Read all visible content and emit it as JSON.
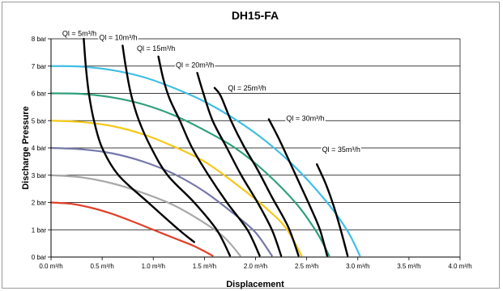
{
  "chart_data": {
    "type": "line",
    "title": "DH15-FA",
    "xlabel": "Displacement",
    "ylabel": "Discharge Pressure",
    "xlim": [
      0,
      4
    ],
    "ylim": [
      0,
      8
    ],
    "x_ticks": [
      {
        "v": 0.0,
        "label": "0.0 m³/h"
      },
      {
        "v": 0.5,
        "label": "0.5 m³/h"
      },
      {
        "v": 1.0,
        "label": "1.0 m³/h"
      },
      {
        "v": 1.5,
        "label": "1.5 m³/h"
      },
      {
        "v": 2.0,
        "label": "2.0 m³/h"
      },
      {
        "v": 2.5,
        "label": "2.5 m³/h"
      },
      {
        "v": 3.0,
        "label": "3.0 m³/h"
      },
      {
        "v": 3.5,
        "label": "3.5 m³/h"
      },
      {
        "v": 4.0,
        "label": "4.0 m³/h"
      }
    ],
    "y_ticks": [
      {
        "v": 0,
        "label": "0 bar"
      },
      {
        "v": 1,
        "label": "1 bar"
      },
      {
        "v": 2,
        "label": "2 bar"
      },
      {
        "v": 3,
        "label": "3 bar"
      },
      {
        "v": 4,
        "label": "4 bar"
      },
      {
        "v": 5,
        "label": "5 bar"
      },
      {
        "v": 6,
        "label": "6 bar"
      },
      {
        "v": 7,
        "label": "7 bar"
      },
      {
        "v": 8,
        "label": "8 bar"
      }
    ],
    "grid": "horizontal",
    "pressure_curves": [
      {
        "color": "#e0402a",
        "points": [
          [
            0.0,
            2.0
          ],
          [
            0.2,
            1.95
          ],
          [
            0.4,
            1.8
          ],
          [
            0.6,
            1.58
          ],
          [
            0.8,
            1.3
          ],
          [
            1.0,
            1.0
          ],
          [
            1.2,
            0.7
          ],
          [
            1.4,
            0.4
          ],
          [
            1.58,
            0.05
          ]
        ]
      },
      {
        "color": "#a8a8a8",
        "points": [
          [
            0.0,
            3.0
          ],
          [
            0.3,
            2.92
          ],
          [
            0.6,
            2.7
          ],
          [
            0.9,
            2.35
          ],
          [
            1.2,
            1.9
          ],
          [
            1.5,
            1.25
          ],
          [
            1.7,
            0.7
          ],
          [
            1.85,
            0.05
          ]
        ]
      },
      {
        "color": "#7478a8",
        "points": [
          [
            0.0,
            4.0
          ],
          [
            0.3,
            3.95
          ],
          [
            0.6,
            3.8
          ],
          [
            0.9,
            3.5
          ],
          [
            1.2,
            3.05
          ],
          [
            1.5,
            2.4
          ],
          [
            1.8,
            1.55
          ],
          [
            2.0,
            0.9
          ],
          [
            2.16,
            0.05
          ]
        ]
      },
      {
        "color": "#f5c817",
        "points": [
          [
            0.0,
            5.0
          ],
          [
            0.3,
            4.95
          ],
          [
            0.6,
            4.8
          ],
          [
            0.9,
            4.5
          ],
          [
            1.2,
            4.05
          ],
          [
            1.5,
            3.5
          ],
          [
            1.8,
            2.7
          ],
          [
            2.1,
            1.8
          ],
          [
            2.3,
            1.05
          ],
          [
            2.45,
            0.05
          ]
        ]
      },
      {
        "color": "#2fa07a",
        "points": [
          [
            0.0,
            6.0
          ],
          [
            0.3,
            5.98
          ],
          [
            0.6,
            5.85
          ],
          [
            0.9,
            5.6
          ],
          [
            1.2,
            5.2
          ],
          [
            1.5,
            4.65
          ],
          [
            1.8,
            4.0
          ],
          [
            2.1,
            3.1
          ],
          [
            2.4,
            1.95
          ],
          [
            2.6,
            0.9
          ],
          [
            2.72,
            0.05
          ]
        ]
      },
      {
        "color": "#40bfe4",
        "points": [
          [
            0.0,
            7.0
          ],
          [
            0.3,
            6.98
          ],
          [
            0.6,
            6.85
          ],
          [
            0.9,
            6.6
          ],
          [
            1.2,
            6.2
          ],
          [
            1.5,
            5.7
          ],
          [
            1.8,
            5.05
          ],
          [
            2.1,
            4.25
          ],
          [
            2.4,
            3.25
          ],
          [
            2.7,
            2.0
          ],
          [
            2.9,
            0.95
          ],
          [
            3.02,
            0.05
          ]
        ]
      }
    ],
    "flow_curves": [
      {
        "label": "Ql = 5m³/h",
        "label_at": [
          0.11,
          8.1
        ],
        "points": [
          [
            0.32,
            8.0
          ],
          [
            0.34,
            7.0
          ],
          [
            0.37,
            6.0
          ],
          [
            0.42,
            5.0
          ],
          [
            0.5,
            4.0
          ],
          [
            0.66,
            3.0
          ],
          [
            0.95,
            2.0
          ],
          [
            1.25,
            1.0
          ],
          [
            1.4,
            0.55
          ]
        ]
      },
      {
        "label": "Ql = 10m³/h",
        "label_at": [
          0.47,
          7.95
        ],
        "points": [
          [
            0.7,
            7.75
          ],
          [
            0.73,
            7.0
          ],
          [
            0.78,
            6.0
          ],
          [
            0.86,
            5.0
          ],
          [
            0.98,
            4.0
          ],
          [
            1.14,
            3.0
          ],
          [
            1.4,
            2.0
          ],
          [
            1.62,
            1.0
          ],
          [
            1.75,
            0.05
          ]
        ]
      },
      {
        "label": "Ql = 15m³/h",
        "label_at": [
          0.84,
          7.55
        ],
        "points": [
          [
            1.05,
            7.35
          ],
          [
            1.1,
            6.5
          ],
          [
            1.16,
            5.8
          ],
          [
            1.26,
            5.0
          ],
          [
            1.38,
            4.0
          ],
          [
            1.54,
            3.0
          ],
          [
            1.72,
            2.0
          ],
          [
            1.92,
            1.0
          ],
          [
            2.04,
            0.05
          ]
        ]
      },
      {
        "label": "Ql = 20m³/h",
        "label_at": [
          1.22,
          6.95
        ],
        "points": [
          [
            1.43,
            6.75
          ],
          [
            1.49,
            6.0
          ],
          [
            1.58,
            5.0
          ],
          [
            1.72,
            4.0
          ],
          [
            1.86,
            3.0
          ],
          [
            2.02,
            2.0
          ],
          [
            2.16,
            1.0
          ],
          [
            2.25,
            0.05
          ]
        ]
      },
      {
        "label": "Ql = 25m³/h",
        "label_at": [
          1.73,
          6.1
        ],
        "points": [
          [
            1.6,
            6.2
          ],
          [
            1.66,
            5.9
          ],
          [
            1.76,
            5.0
          ],
          [
            1.88,
            4.1
          ],
          [
            2.02,
            3.2
          ],
          [
            2.16,
            2.2
          ],
          [
            2.32,
            1.1
          ],
          [
            2.42,
            0.05
          ]
        ]
      },
      {
        "label": "Ql = 30m³/h",
        "label_at": [
          2.3,
          5.0
        ],
        "points": [
          [
            2.13,
            5.05
          ],
          [
            2.22,
            4.4
          ],
          [
            2.32,
            3.6
          ],
          [
            2.43,
            2.7
          ],
          [
            2.54,
            1.8
          ],
          [
            2.63,
            1.0
          ],
          [
            2.7,
            0.05
          ]
        ]
      },
      {
        "label": "Ql = 35m³/h",
        "label_at": [
          2.65,
          3.85
        ],
        "points": [
          [
            2.6,
            3.4
          ],
          [
            2.69,
            2.65
          ],
          [
            2.77,
            1.8
          ],
          [
            2.84,
            0.9
          ],
          [
            2.9,
            0.05
          ]
        ]
      }
    ]
  }
}
